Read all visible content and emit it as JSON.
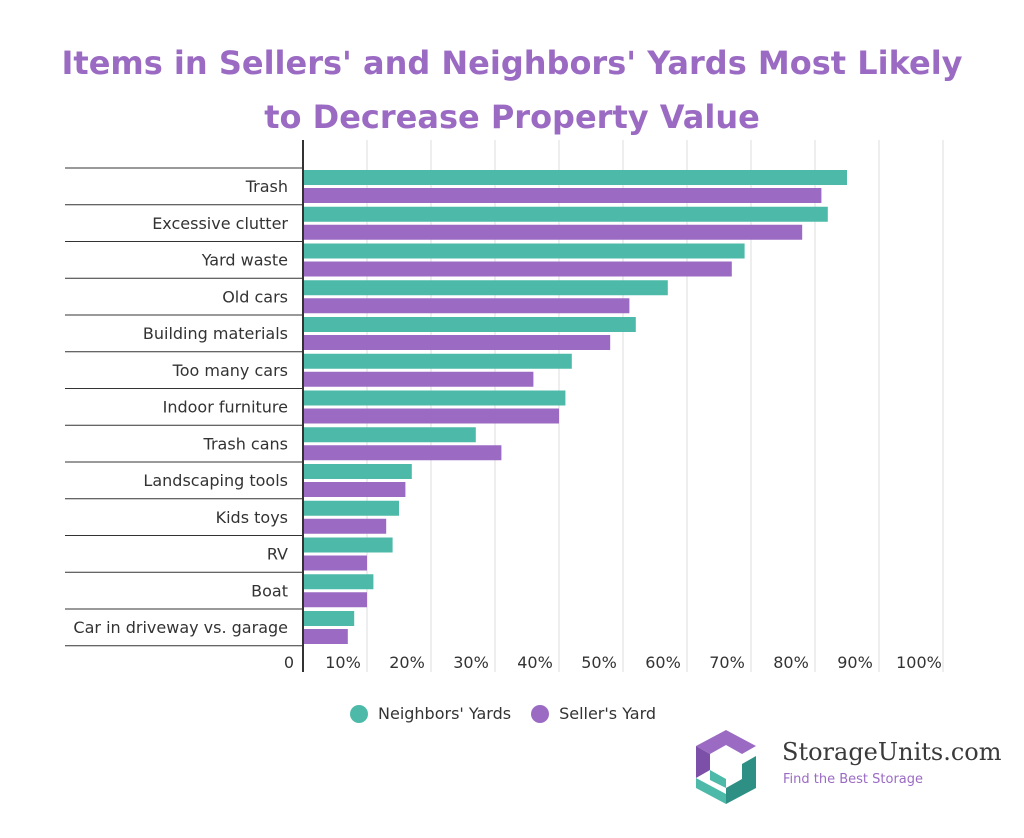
{
  "colors": {
    "neighbors": "#4dbaa9",
    "seller": "#9b6bc3",
    "title": "#9b6bc3",
    "grid": "#dddddd",
    "axis": "#333333"
  },
  "legend": {
    "neighbors": "Neighbors' Yards",
    "seller": "Seller's Yard"
  },
  "brand": {
    "name": "StorageUnits.com",
    "tagline": "Find the Best Storage",
    "logo_icon": "storageunits-logo-icon"
  },
  "chart_data": {
    "type": "bar",
    "orientation": "horizontal",
    "title": "Items in Sellers' and Neighbors' Yards Most Likely to Decrease Property Value",
    "xlabel": "",
    "ylabel": "",
    "xlim": [
      0,
      100
    ],
    "grid": true,
    "legend_position": "bottom",
    "tick_labels": [
      "0",
      "10%",
      "20%",
      "30%",
      "40%",
      "50%",
      "60%",
      "70%",
      "80%",
      "90%",
      "100%"
    ],
    "categories": [
      "Trash",
      "Excessive clutter",
      "Yard waste",
      "Old cars",
      "Building materials",
      "Too many cars",
      "Indoor furniture",
      "Trash cans",
      "Landscaping tools",
      "Kids toys",
      "RV",
      "Boat",
      "Car in driveway vs. garage"
    ],
    "series": [
      {
        "name": "Neighbors' Yards",
        "values": [
          85,
          82,
          69,
          57,
          52,
          42,
          41,
          27,
          17,
          15,
          14,
          11,
          8
        ]
      },
      {
        "name": "Seller's Yard",
        "values": [
          81,
          78,
          67,
          51,
          48,
          36,
          40,
          31,
          16,
          13,
          10,
          10,
          7
        ]
      }
    ]
  }
}
